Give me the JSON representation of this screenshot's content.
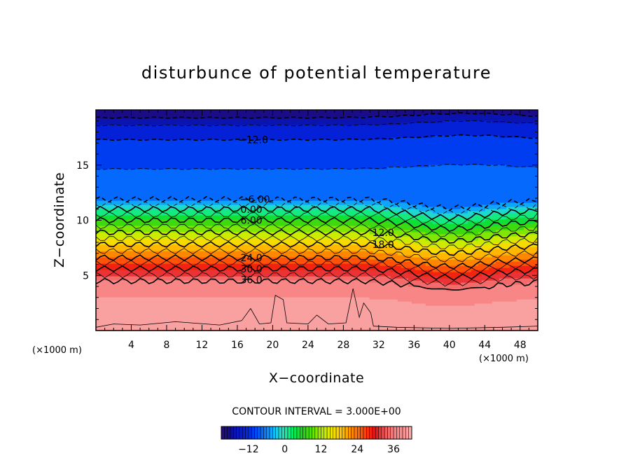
{
  "chart_data": {
    "type": "heatmap",
    "subtype": "filled-contour",
    "title": "disturbunce of potential temperature",
    "xlabel": "X−coordinate",
    "ylabel": "Z−coordinate",
    "x_unit_label": "(×1000 m)",
    "y_unit_label": "(×1000 m)",
    "xlim": [
      0,
      50
    ],
    "ylim": [
      0,
      20
    ],
    "x_ticks": [
      4,
      8,
      12,
      16,
      20,
      24,
      28,
      32,
      36,
      40,
      44,
      48
    ],
    "x_tick_labels": [
      "4",
      "8",
      "12",
      "16",
      "20",
      "24",
      "28",
      "32",
      "36",
      "40",
      "44",
      "48"
    ],
    "y_ticks": [
      5,
      10,
      15
    ],
    "y_tick_labels": [
      "5",
      "10",
      "15"
    ],
    "contour_interval_text": "CONTOUR INTERVAL = 3.000E+00",
    "contour_interval": 3.0,
    "contour_labels": [
      {
        "text": "-12.0",
        "value": -12,
        "x": 17.8,
        "z": 17.3
      },
      {
        "text": "-6.00",
        "value": -6,
        "x": 18.0,
        "z": 11.9
      },
      {
        "text": "0.00",
        "value": 0,
        "x": 17.6,
        "z": 11.0
      },
      {
        "text": "6.00",
        "value": 6,
        "x": 17.6,
        "z": 10.0
      },
      {
        "text": "12.0",
        "value": 12,
        "x": 32.5,
        "z": 8.9
      },
      {
        "text": "18.0",
        "value": 18,
        "x": 32.5,
        "z": 7.8
      },
      {
        "text": "24.0",
        "value": 24,
        "x": 17.6,
        "z": 6.6
      },
      {
        "text": "30.0",
        "value": 30,
        "x": 17.6,
        "z": 5.6
      },
      {
        "text": "36.0",
        "value": 36,
        "x": 17.6,
        "z": 4.6
      }
    ],
    "colorbar": {
      "min": -21,
      "max": 42,
      "tick_values": [
        -12,
        0,
        12,
        24,
        36
      ],
      "tick_labels": [
        "−12",
        "0",
        "12",
        "24",
        "36"
      ]
    },
    "grid": false,
    "legend": "colorbar-bottom"
  }
}
